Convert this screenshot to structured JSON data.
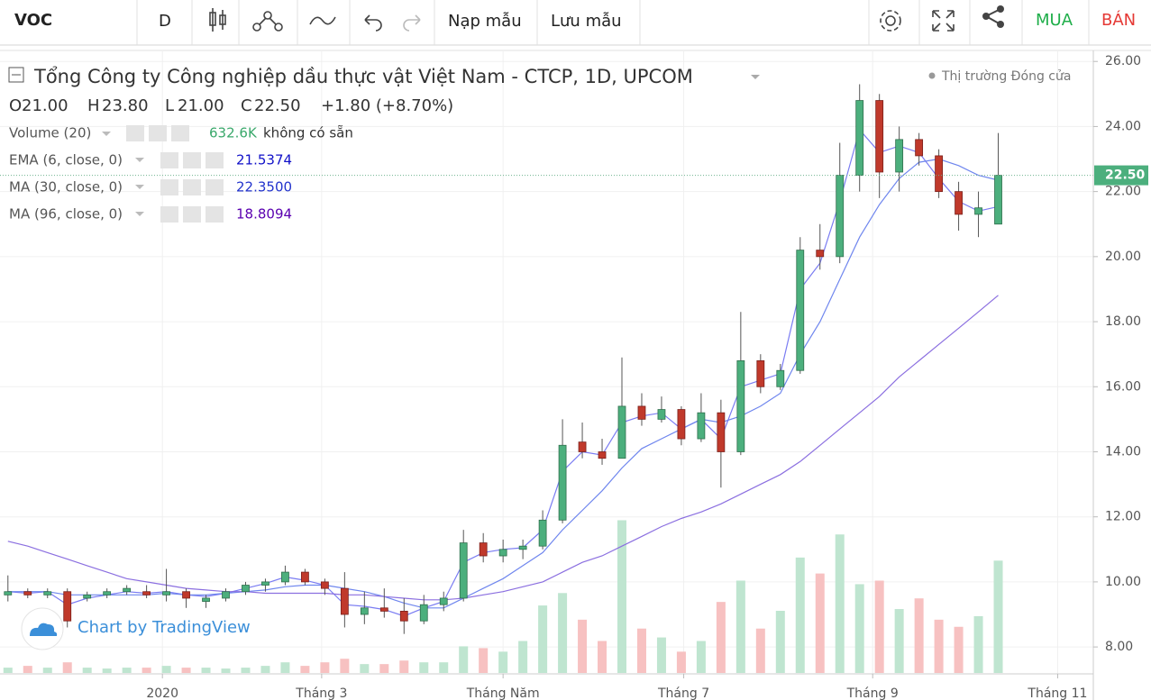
{
  "toolbar": {
    "symbol": "VOC",
    "interval": "D",
    "load": "Nạp mẫu",
    "save": "Lưu mẫu",
    "buy": "MUA",
    "sell": "BÁN"
  },
  "header": {
    "title": "Tổng Công ty Công nghiệp dầu thực vật Việt Nam - CTCP, 1D, UPCOM",
    "status": "Thị trường Đóng cửa",
    "ohlc": [
      {
        "label": "O",
        "value": "21.00"
      },
      {
        "label": "H",
        "value": "23.80"
      },
      {
        "label": "L",
        "value": "21.00"
      },
      {
        "label": "C",
        "value": "22.50"
      }
    ],
    "change": "+1.80 (+8.70%)",
    "volume_value": "632.6K",
    "volume_status": "không có sẵn"
  },
  "watermark": "Chart by TradingView",
  "chart_data": {
    "type": "candlestick",
    "grid": true,
    "up_color": "#4caf7d",
    "down_color": "#c0392b",
    "x": [
      1,
      6,
      11,
      16,
      21,
      26,
      31,
      36,
      41,
      46,
      51,
      56,
      61,
      66,
      71,
      76,
      81,
      86,
      91,
      96,
      101,
      106,
      111,
      116,
      121,
      126,
      131,
      136,
      141,
      146,
      151,
      156,
      161,
      166,
      171,
      176,
      181,
      186,
      191,
      196,
      201,
      206,
      211,
      216,
      221,
      226,
      231,
      236,
      241,
      246,
      251
    ],
    "open": [
      9.6,
      9.7,
      9.6,
      9.7,
      9.5,
      9.6,
      9.7,
      9.7,
      9.6,
      9.7,
      9.4,
      9.5,
      9.7,
      9.9,
      10.0,
      10.3,
      10.0,
      9.8,
      9.0,
      9.2,
      9.1,
      8.8,
      9.3,
      9.5,
      11.2,
      10.8,
      11.0,
      11.1,
      11.9,
      14.3,
      14.0,
      13.8,
      15.4,
      15.0,
      15.3,
      14.4,
      15.2,
      14.0,
      16.8,
      16.0,
      16.5,
      20.2,
      20.0,
      22.5,
      24.8,
      22.6,
      23.6,
      23.1,
      22.0,
      21.3,
      21.0
    ],
    "high": [
      10.2,
      9.8,
      9.8,
      9.8,
      9.7,
      9.8,
      9.9,
      9.9,
      10.4,
      9.8,
      9.6,
      9.8,
      10.0,
      10.1,
      10.5,
      10.4,
      10.1,
      10.3,
      9.7,
      9.8,
      9.5,
      9.6,
      9.7,
      11.6,
      11.5,
      11.3,
      11.3,
      12.2,
      15.0,
      14.9,
      14.4,
      16.9,
      15.8,
      15.7,
      15.4,
      15.8,
      15.6,
      18.3,
      17.0,
      16.7,
      20.6,
      21.0,
      23.5,
      25.3,
      25.0,
      24.0,
      23.8,
      23.3,
      22.3,
      22.0,
      23.8
    ],
    "low": [
      9.4,
      9.5,
      9.5,
      8.6,
      9.4,
      9.5,
      9.6,
      9.5,
      9.4,
      9.2,
      9.2,
      9.4,
      9.6,
      9.7,
      9.9,
      9.9,
      9.6,
      8.6,
      8.7,
      8.9,
      8.4,
      8.7,
      9.1,
      9.4,
      10.6,
      10.6,
      10.7,
      11.0,
      11.8,
      13.8,
      13.6,
      13.8,
      14.8,
      14.9,
      14.2,
      14.3,
      12.9,
      13.9,
      15.8,
      15.9,
      16.4,
      19.6,
      19.8,
      22.0,
      21.8,
      22.0,
      22.8,
      21.8,
      20.8,
      20.6,
      21.0
    ],
    "close": [
      9.7,
      9.6,
      9.7,
      8.8,
      9.6,
      9.7,
      9.8,
      9.6,
      9.7,
      9.5,
      9.5,
      9.7,
      9.9,
      10.0,
      10.3,
      10.0,
      9.8,
      9.0,
      9.2,
      9.1,
      8.8,
      9.3,
      9.5,
      11.2,
      10.8,
      11.0,
      11.1,
      11.9,
      14.2,
      14.0,
      13.8,
      15.4,
      15.0,
      15.3,
      14.4,
      15.2,
      14.0,
      16.8,
      16.0,
      16.5,
      20.2,
      20.0,
      22.5,
      24.8,
      22.6,
      23.6,
      23.1,
      22.0,
      21.3,
      21.5,
      22.5
    ],
    "volume": {
      "name": "Volume (20)",
      "axis": "y2",
      "up_color": "#bfe5d0",
      "down_color": "#f7c1c1",
      "values": [
        30000,
        40000,
        30000,
        60000,
        30000,
        25000,
        30000,
        30000,
        40000,
        30000,
        30000,
        25000,
        30000,
        40000,
        60000,
        40000,
        60000,
        80000,
        50000,
        50000,
        70000,
        60000,
        60000,
        150000,
        140000,
        120000,
        180000,
        380000,
        450000,
        300000,
        180000,
        860000,
        250000,
        200000,
        120000,
        180000,
        400000,
        520000,
        250000,
        350000,
        650000,
        560000,
        780000,
        500000,
        520000,
        360000,
        420000,
        300000,
        260000,
        320000,
        632600
      ]
    },
    "series": [
      {
        "name": "EMA (6, close, 0)",
        "color": "#7a7cf2",
        "label_color": "#1010c8",
        "last_label": "21.5374",
        "values": [
          9.7,
          9.65,
          9.7,
          9.3,
          9.5,
          9.6,
          9.7,
          9.65,
          9.7,
          9.6,
          9.55,
          9.65,
          9.8,
          9.95,
          10.15,
          10.05,
          9.9,
          9.3,
          9.25,
          9.15,
          8.95,
          9.2,
          9.4,
          10.6,
          10.9,
          11.0,
          11.05,
          11.6,
          13.4,
          14.0,
          13.9,
          14.9,
          15.1,
          15.2,
          14.7,
          15.0,
          14.4,
          16.0,
          16.2,
          16.4,
          19.0,
          19.8,
          21.7,
          23.9,
          23.2,
          23.4,
          23.2,
          22.4,
          21.7,
          21.4,
          21.5374
        ]
      },
      {
        "name": "MA (30, close, 0)",
        "color": "#6f86ee",
        "label_color": "#2233cc",
        "last_label": "22.3500",
        "values": [
          9.7,
          9.7,
          9.7,
          9.6,
          9.6,
          9.6,
          9.6,
          9.6,
          9.65,
          9.6,
          9.6,
          9.65,
          9.7,
          9.75,
          9.85,
          9.9,
          9.9,
          9.8,
          9.7,
          9.55,
          9.35,
          9.2,
          9.2,
          9.5,
          9.8,
          10.1,
          10.5,
          10.9,
          11.6,
          12.2,
          12.8,
          13.5,
          14.1,
          14.4,
          14.7,
          15.0,
          14.9,
          15.1,
          15.4,
          15.8,
          17.0,
          18.0,
          19.3,
          20.6,
          21.6,
          22.4,
          22.9,
          23.0,
          22.8,
          22.5,
          22.35
        ]
      },
      {
        "name": "MA (96, close, 0)",
        "color": "#8b6fe0",
        "label_color": "#5a00b0",
        "last_label": "18.8094",
        "values": [
          11.25,
          11.1,
          10.9,
          10.7,
          10.5,
          10.3,
          10.1,
          10.0,
          9.9,
          9.8,
          9.75,
          9.7,
          9.7,
          9.65,
          9.65,
          9.65,
          9.65,
          9.6,
          9.6,
          9.55,
          9.5,
          9.45,
          9.45,
          9.5,
          9.6,
          9.7,
          9.85,
          10.0,
          10.3,
          10.6,
          10.8,
          11.1,
          11.4,
          11.7,
          11.95,
          12.15,
          12.4,
          12.7,
          13.0,
          13.3,
          13.7,
          14.2,
          14.7,
          15.2,
          15.7,
          16.3,
          16.8,
          17.3,
          17.8,
          18.3,
          18.8094
        ]
      }
    ],
    "last_price": {
      "value": 22.5,
      "label": "22.50"
    },
    "xlim": [
      -1,
      275
    ],
    "xticks": [
      {
        "value": 40,
        "label": "2020"
      },
      {
        "value": 80.2,
        "label": "Tháng 3"
      },
      {
        "value": 126,
        "label": "Tháng Năm"
      },
      {
        "value": 171.6,
        "label": "Tháng 7"
      },
      {
        "value": 219.3,
        "label": "Tháng 9"
      },
      {
        "value": 266,
        "label": "Tháng 11"
      }
    ],
    "ylim": [
      7.2,
      26.2
    ],
    "yticks": [
      {
        "value": 8,
        "label": "8.00"
      },
      {
        "value": 10,
        "label": "10.00"
      },
      {
        "value": 12,
        "label": "12.00"
      },
      {
        "value": 14,
        "label": "14.00"
      },
      {
        "value": 16,
        "label": "16.00"
      },
      {
        "value": 18,
        "label": "18.00"
      },
      {
        "value": 20,
        "label": "20.00"
      },
      {
        "value": 22,
        "label": "22.00"
      },
      {
        "value": 24,
        "label": "24.00"
      },
      {
        "value": 26,
        "label": "26.00"
      }
    ],
    "y2lim": [
      0,
      3480000
    ]
  }
}
